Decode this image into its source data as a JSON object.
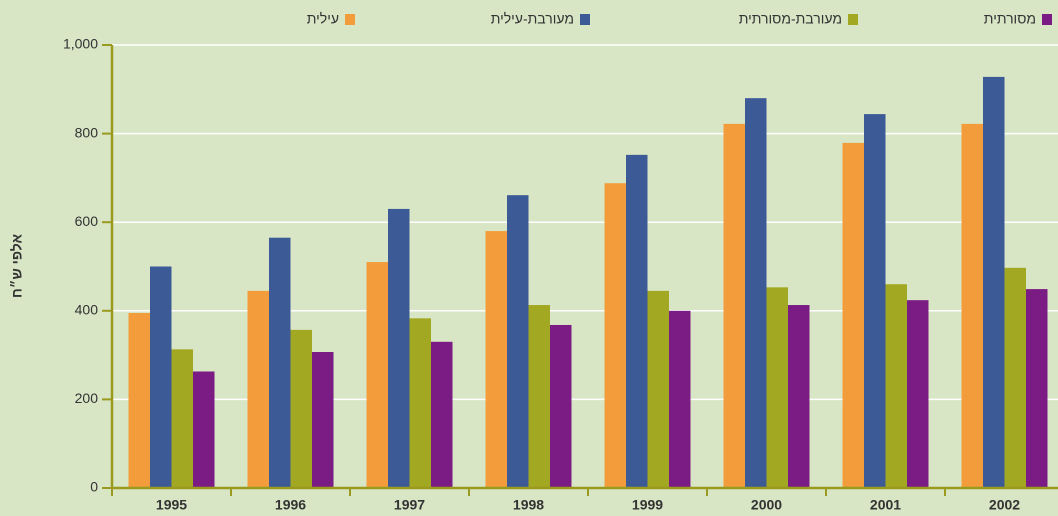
{
  "chart_data": {
    "type": "bar",
    "ylabel": "אלפי ש״ח",
    "categories": [
      "1995",
      "1996",
      "1997",
      "1998",
      "1999",
      "2000",
      "2001",
      "2002"
    ],
    "series": [
      {
        "name": "עילית",
        "color": "#f39c3b",
        "values": [
          395,
          445,
          510,
          580,
          688,
          822,
          779,
          822
        ]
      },
      {
        "name": "מעורבת-עילית",
        "color": "#3c5a96",
        "values": [
          500,
          565,
          630,
          661,
          752,
          880,
          844,
          928
        ]
      },
      {
        "name": "מעורבת-מסורתית",
        "color": "#a3a822",
        "values": [
          313,
          357,
          383,
          413,
          445,
          453,
          460,
          497
        ]
      },
      {
        "name": "מסורתית",
        "color": "#7b1c84",
        "values": [
          263,
          307,
          330,
          368,
          400,
          413,
          424,
          449
        ]
      }
    ],
    "ylim": [
      0,
      1000
    ],
    "yticks": [
      0,
      200,
      400,
      600,
      800,
      {
        "value": 1000,
        "label": "1,000"
      }
    ],
    "grid": true
  }
}
